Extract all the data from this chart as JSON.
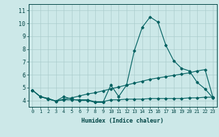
{
  "xlabel": "Humidex (Indice chaleur)",
  "x": [
    0,
    1,
    2,
    3,
    4,
    5,
    6,
    7,
    8,
    9,
    10,
    11,
    12,
    13,
    14,
    15,
    16,
    17,
    18,
    19,
    20,
    21,
    22,
    23
  ],
  "line1": [
    4.8,
    4.3,
    4.1,
    3.95,
    4.3,
    4.1,
    4.0,
    4.0,
    3.85,
    3.85,
    5.2,
    4.3,
    5.2,
    7.9,
    9.7,
    10.5,
    10.1,
    8.3,
    7.1,
    6.5,
    6.3,
    5.4,
    4.9,
    4.2
  ],
  "line2": [
    4.8,
    4.3,
    4.15,
    3.95,
    4.05,
    4.05,
    4.05,
    4.05,
    3.9,
    3.9,
    4.05,
    4.05,
    4.1,
    4.1,
    4.1,
    4.15,
    4.15,
    4.15,
    4.15,
    4.15,
    4.2,
    4.2,
    4.25,
    4.25
  ],
  "line3": [
    4.8,
    4.3,
    4.15,
    3.95,
    4.1,
    4.2,
    4.35,
    4.5,
    4.6,
    4.75,
    4.9,
    5.05,
    5.2,
    5.35,
    5.5,
    5.65,
    5.75,
    5.85,
    5.95,
    6.05,
    6.15,
    6.3,
    6.4,
    4.25
  ],
  "ylim": [
    3.5,
    11.5
  ],
  "xlim": [
    -0.5,
    23.5
  ],
  "yticks": [
    4,
    5,
    6,
    7,
    8,
    9,
    10,
    11
  ],
  "xticks": [
    0,
    1,
    2,
    3,
    4,
    5,
    6,
    7,
    8,
    9,
    10,
    11,
    12,
    13,
    14,
    15,
    16,
    17,
    18,
    19,
    20,
    21,
    22,
    23
  ],
  "line_color": "#006060",
  "bg_color": "#cce8e8",
  "grid_color": "#aacccc",
  "font_color": "#004444",
  "tick_label_fontsize": 5,
  "xlabel_fontsize": 6
}
